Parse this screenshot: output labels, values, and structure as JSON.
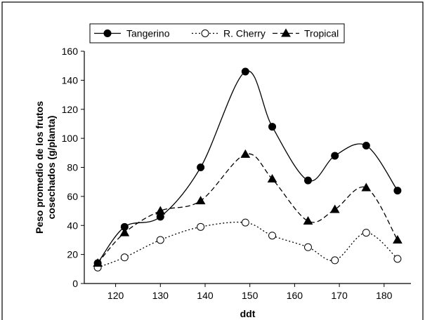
{
  "chart_data": {
    "type": "line",
    "title": "",
    "xlabel": "ddt",
    "ylabel_lines": [
      "Peso promedio de los frutos",
      "cosechados (g/planta)"
    ],
    "xlim": [
      113,
      186
    ],
    "ylim": [
      0,
      160
    ],
    "xticks": [
      120,
      130,
      140,
      150,
      160,
      170,
      180
    ],
    "yticks": [
      0,
      20,
      40,
      60,
      80,
      100,
      120,
      140,
      160
    ],
    "grid": false,
    "legend_position": "top",
    "series": [
      {
        "name": "Tangerino",
        "marker": "filled-circle",
        "line_style": "solid",
        "x": [
          116,
          122,
          130,
          139,
          149,
          155,
          163,
          169,
          176,
          183
        ],
        "y": [
          14,
          39,
          46,
          80,
          146,
          108,
          71,
          88,
          95,
          64
        ]
      },
      {
        "name": "R. Cherry",
        "marker": "open-circle",
        "line_style": "dotted",
        "x": [
          116,
          122,
          130,
          139,
          149,
          155,
          163,
          169,
          176,
          183
        ],
        "y": [
          11,
          18,
          30,
          39,
          42,
          33,
          25,
          16,
          35,
          17
        ]
      },
      {
        "name": "Tropical",
        "marker": "filled-triangle",
        "line_style": "dashed",
        "x": [
          116,
          122,
          130,
          139,
          149,
          155,
          163,
          169,
          176,
          183
        ],
        "y": [
          14,
          35,
          50,
          57,
          89,
          72,
          43,
          51,
          66,
          30
        ]
      }
    ],
    "colors": {
      "line": "#000000",
      "background": "#ffffff"
    }
  }
}
